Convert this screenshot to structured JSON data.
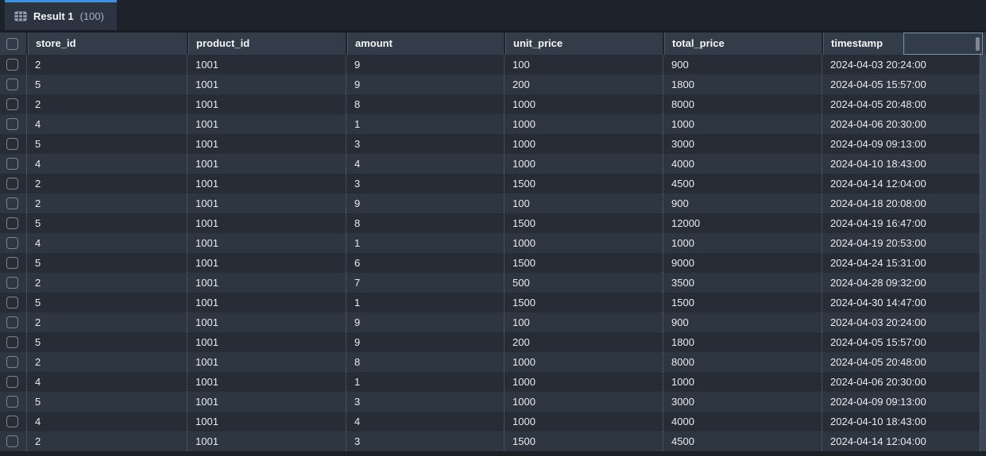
{
  "tab": {
    "icon": "table-grid-icon",
    "label": "Result 1",
    "count": "(100)"
  },
  "table": {
    "columns": [
      "store_id",
      "product_id",
      "amount",
      "unit_price",
      "total_price",
      "timestamp"
    ],
    "rows": [
      [
        "2",
        "1001",
        "9",
        "100",
        "900",
        "2024-04-03 20:24:00"
      ],
      [
        "5",
        "1001",
        "9",
        "200",
        "1800",
        "2024-04-05 15:57:00"
      ],
      [
        "2",
        "1001",
        "8",
        "1000",
        "8000",
        "2024-04-05 20:48:00"
      ],
      [
        "4",
        "1001",
        "1",
        "1000",
        "1000",
        "2024-04-06 20:30:00"
      ],
      [
        "5",
        "1001",
        "3",
        "1000",
        "3000",
        "2024-04-09 09:13:00"
      ],
      [
        "4",
        "1001",
        "4",
        "1000",
        "4000",
        "2024-04-10 18:43:00"
      ],
      [
        "2",
        "1001",
        "3",
        "1500",
        "4500",
        "2024-04-14 12:04:00"
      ],
      [
        "2",
        "1001",
        "9",
        "100",
        "900",
        "2024-04-18 20:08:00"
      ],
      [
        "5",
        "1001",
        "8",
        "1500",
        "12000",
        "2024-04-19 16:47:00"
      ],
      [
        "4",
        "1001",
        "1",
        "1000",
        "1000",
        "2024-04-19 20:53:00"
      ],
      [
        "5",
        "1001",
        "6",
        "1500",
        "9000",
        "2024-04-24 15:31:00"
      ],
      [
        "2",
        "1001",
        "7",
        "500",
        "3500",
        "2024-04-28 09:32:00"
      ],
      [
        "5",
        "1001",
        "1",
        "1500",
        "1500",
        "2024-04-30 14:47:00"
      ],
      [
        "2",
        "1001",
        "9",
        "100",
        "900",
        "2024-04-03 20:24:00"
      ],
      [
        "5",
        "1001",
        "9",
        "200",
        "1800",
        "2024-04-05 15:57:00"
      ],
      [
        "2",
        "1001",
        "8",
        "1000",
        "8000",
        "2024-04-05 20:48:00"
      ],
      [
        "4",
        "1001",
        "1",
        "1000",
        "1000",
        "2024-04-06 20:30:00"
      ],
      [
        "5",
        "1001",
        "3",
        "1000",
        "3000",
        "2024-04-09 09:13:00"
      ],
      [
        "4",
        "1001",
        "4",
        "1000",
        "4000",
        "2024-04-10 18:43:00"
      ],
      [
        "2",
        "1001",
        "3",
        "1500",
        "4500",
        "2024-04-14 12:04:00"
      ]
    ]
  },
  "colors": {
    "accent_blue": "#4090e0",
    "header_bg": "#333d49",
    "row_odd": "#272d37",
    "row_even": "#2e3641",
    "tab_bg": "#2b3440",
    "page_bg": "#171d24"
  }
}
